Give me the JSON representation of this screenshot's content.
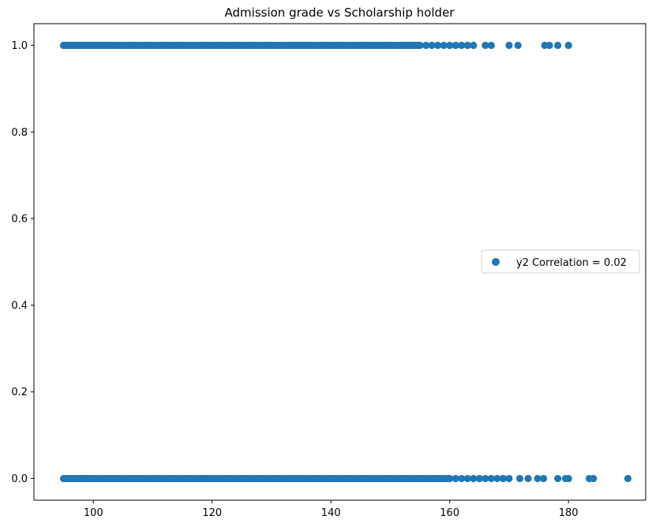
{
  "chart_data": {
    "type": "scatter",
    "title": "Admission grade vs Scholarship holder",
    "xlabel": "",
    "ylabel": "",
    "xlim": [
      90,
      193
    ],
    "ylim": [
      -0.05,
      1.05
    ],
    "x_ticks": [
      100,
      120,
      140,
      160,
      180
    ],
    "y_ticks": [
      0.0,
      0.2,
      0.4,
      0.6,
      0.8,
      1.0
    ],
    "x_tick_labels": [
      "100",
      "120",
      "140",
      "160",
      "180"
    ],
    "y_tick_labels": [
      "0.0",
      "0.2",
      "0.4",
      "0.6",
      "0.8",
      "1.0"
    ],
    "grid": false,
    "legend": {
      "placement": "center-right",
      "entries": [
        "y2 Correlation = 0.02"
      ]
    },
    "series": [
      {
        "name": "y2 Correlation = 0.02",
        "color": "#1f77b4",
        "marker": "circle",
        "points_y1": {
          "y": 1,
          "x_range_dense": [
            95,
            155
          ],
          "x_extra": [
            95,
            96,
            97,
            98,
            99,
            100,
            101,
            103,
            105,
            107,
            109,
            112,
            115,
            118,
            121,
            124,
            127,
            130,
            133,
            136,
            139,
            142,
            145,
            148,
            150,
            152,
            154,
            155,
            156,
            157,
            158,
            159,
            160,
            161,
            162,
            163,
            164,
            166,
            167,
            170,
            171.5,
            176,
            176.8,
            178.2,
            180
          ]
        },
        "points_y0": {
          "y": 0,
          "x_range_dense": [
            95,
            160
          ],
          "x_extra": [
            95,
            96,
            97,
            98,
            99,
            100,
            102,
            104,
            106,
            108,
            110,
            113,
            116,
            119,
            122,
            125,
            128,
            131,
            134,
            137,
            140,
            143,
            146,
            149,
            152,
            155,
            158,
            160,
            161,
            162,
            163,
            164,
            165,
            166,
            167,
            168,
            169,
            170,
            171.8,
            173.2,
            174.8,
            175.8,
            178.2,
            179.5,
            180,
            183.5,
            184.2,
            190
          ]
        }
      }
    ]
  }
}
